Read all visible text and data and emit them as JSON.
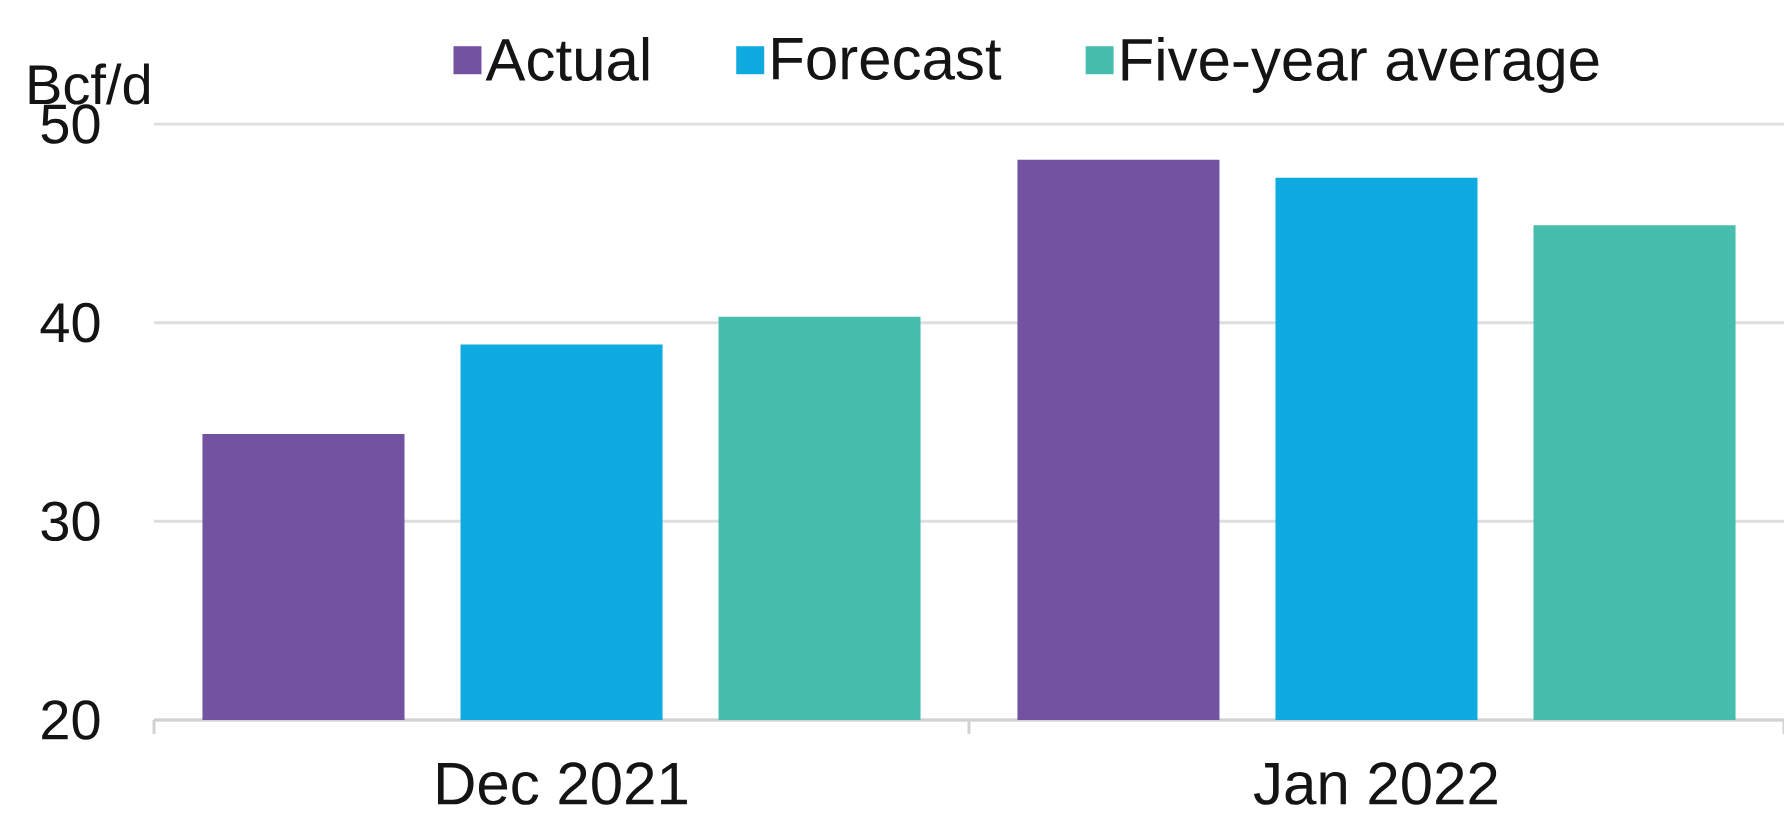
{
  "chart_data": {
    "type": "bar",
    "ylabel": "Bcf/d",
    "categories": [
      "Dec 2021",
      "Jan 2022"
    ],
    "series": [
      {
        "name": "Actual",
        "color": "#7452a2",
        "values": [
          34.4,
          48.2
        ]
      },
      {
        "name": "Forecast",
        "color": "#0faae0",
        "values": [
          38.9,
          47.3
        ]
      },
      {
        "name": "Five-year average",
        "color": "#47bdae",
        "values": [
          40.3,
          44.9
        ]
      }
    ],
    "ylim": [
      20,
      50
    ],
    "yticks": [
      20,
      30,
      40,
      50
    ],
    "grid": "y",
    "legend": "top"
  }
}
